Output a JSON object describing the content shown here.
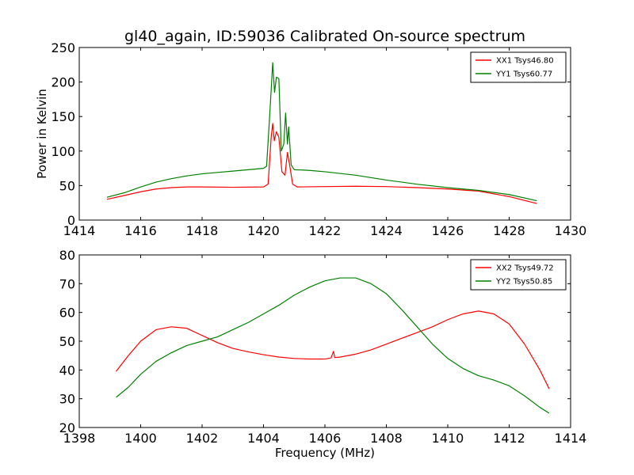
{
  "chart_data": [
    {
      "type": "line",
      "title": "gl40_again, ID:59036 Calibrated On-source spectrum",
      "xlabel": "",
      "ylabel": "Power in Kelvin",
      "xlim": [
        1414,
        1430
      ],
      "ylim": [
        0,
        250
      ],
      "xticks": [
        1414,
        1416,
        1418,
        1420,
        1422,
        1424,
        1426,
        1428,
        1430
      ],
      "yticks": [
        0,
        50,
        100,
        150,
        200,
        250
      ],
      "legend_position": "top-right",
      "grid": false,
      "series": [
        {
          "name": "XX1 Tsys46.80",
          "color": "#ff0000",
          "points": [
            [
              1414.9,
              30
            ],
            [
              1415.5,
              36
            ],
            [
              1416,
              41
            ],
            [
              1416.5,
              45
            ],
            [
              1417,
              47
            ],
            [
              1417.5,
              48
            ],
            [
              1418,
              48
            ],
            [
              1419,
              47.5
            ],
            [
              1420,
              48
            ],
            [
              1420.15,
              52
            ],
            [
              1420.25,
              120
            ],
            [
              1420.3,
              140
            ],
            [
              1420.35,
              115
            ],
            [
              1420.42,
              128
            ],
            [
              1420.5,
              120
            ],
            [
              1420.6,
              70
            ],
            [
              1420.7,
              65
            ],
            [
              1420.78,
              98
            ],
            [
              1420.85,
              80
            ],
            [
              1420.95,
              52
            ],
            [
              1421.1,
              48
            ],
            [
              1422,
              48.5
            ],
            [
              1423,
              49
            ],
            [
              1424,
              48.5
            ],
            [
              1425,
              47
            ],
            [
              1426,
              45
            ],
            [
              1427,
              42
            ],
            [
              1428,
              34
            ],
            [
              1428.9,
              24
            ]
          ]
        },
        {
          "name": "YY1 Tsys60.77",
          "color": "#008000",
          "points": [
            [
              1414.9,
              33
            ],
            [
              1415.5,
              40
            ],
            [
              1416,
              48
            ],
            [
              1416.5,
              55
            ],
            [
              1417,
              60
            ],
            [
              1417.5,
              64
            ],
            [
              1418,
              67
            ],
            [
              1418.5,
              69
            ],
            [
              1419,
              71
            ],
            [
              1419.5,
              73
            ],
            [
              1420,
              75
            ],
            [
              1420.1,
              78
            ],
            [
              1420.2,
              150
            ],
            [
              1420.3,
              228
            ],
            [
              1420.36,
              185
            ],
            [
              1420.42,
              207
            ],
            [
              1420.5,
              205
            ],
            [
              1420.58,
              100
            ],
            [
              1420.66,
              110
            ],
            [
              1420.72,
              155
            ],
            [
              1420.78,
              110
            ],
            [
              1420.82,
              135
            ],
            [
              1420.9,
              80
            ],
            [
              1421,
              73
            ],
            [
              1421.5,
              72
            ],
            [
              1422,
              70
            ],
            [
              1423,
              65
            ],
            [
              1424,
              58
            ],
            [
              1425,
              52
            ],
            [
              1426,
              47
            ],
            [
              1427,
              43
            ],
            [
              1428,
              37
            ],
            [
              1428.9,
              28
            ]
          ]
        }
      ]
    },
    {
      "type": "line",
      "title": "",
      "xlabel": "Frequency (MHz)",
      "ylabel": "",
      "xlim": [
        1398,
        1414
      ],
      "ylim": [
        20,
        80
      ],
      "xticks": [
        1398,
        1400,
        1402,
        1404,
        1406,
        1408,
        1410,
        1412,
        1414
      ],
      "yticks": [
        20,
        30,
        40,
        50,
        60,
        70,
        80
      ],
      "legend_position": "top-right",
      "grid": false,
      "series": [
        {
          "name": "XX2 Tsys49.72",
          "color": "#ff0000",
          "points": [
            [
              1399.2,
              39.5
            ],
            [
              1399.6,
              45
            ],
            [
              1400,
              50
            ],
            [
              1400.5,
              54
            ],
            [
              1401,
              55
            ],
            [
              1401.5,
              54.5
            ],
            [
              1402,
              52
            ],
            [
              1402.5,
              49.5
            ],
            [
              1403,
              47.5
            ],
            [
              1403.5,
              46.3
            ],
            [
              1404,
              45.3
            ],
            [
              1404.5,
              44.5
            ],
            [
              1405,
              44
            ],
            [
              1405.5,
              43.8
            ],
            [
              1406,
              43.8
            ],
            [
              1406.2,
              44.2
            ],
            [
              1406.28,
              46.5
            ],
            [
              1406.32,
              44.3
            ],
            [
              1406.5,
              44.5
            ],
            [
              1407,
              45.5
            ],
            [
              1407.5,
              47
            ],
            [
              1408,
              49
            ],
            [
              1408.5,
              51
            ],
            [
              1409,
              53
            ],
            [
              1409.5,
              55
            ],
            [
              1410,
              57.5
            ],
            [
              1410.5,
              59.5
            ],
            [
              1411,
              60.5
            ],
            [
              1411.5,
              59.5
            ],
            [
              1412,
              56
            ],
            [
              1412.5,
              49
            ],
            [
              1413,
              40
            ],
            [
              1413.3,
              33.5
            ]
          ]
        },
        {
          "name": "YY2 Tsys50.85",
          "color": "#008000",
          "points": [
            [
              1399.2,
              30.5
            ],
            [
              1399.6,
              34
            ],
            [
              1400,
              38.5
            ],
            [
              1400.5,
              43
            ],
            [
              1401,
              46
            ],
            [
              1401.5,
              48.5
            ],
            [
              1402,
              50
            ],
            [
              1402.5,
              51.5
            ],
            [
              1403,
              54
            ],
            [
              1403.5,
              56.5
            ],
            [
              1404,
              59.5
            ],
            [
              1404.5,
              62.5
            ],
            [
              1405,
              66
            ],
            [
              1405.5,
              68.8
            ],
            [
              1406,
              71
            ],
            [
              1406.5,
              72
            ],
            [
              1407,
              72
            ],
            [
              1407.5,
              70
            ],
            [
              1408,
              66.5
            ],
            [
              1408.5,
              61
            ],
            [
              1409,
              55
            ],
            [
              1409.5,
              49
            ],
            [
              1410,
              44
            ],
            [
              1410.5,
              40.5
            ],
            [
              1411,
              38
            ],
            [
              1411.5,
              36.5
            ],
            [
              1412,
              34.5
            ],
            [
              1412.5,
              31
            ],
            [
              1413,
              27
            ],
            [
              1413.3,
              25
            ]
          ]
        }
      ]
    }
  ]
}
